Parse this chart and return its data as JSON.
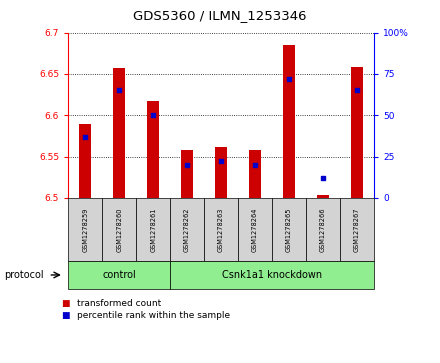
{
  "title": "GDS5360 / ILMN_1253346",
  "samples": [
    "GSM1278259",
    "GSM1278260",
    "GSM1278261",
    "GSM1278262",
    "GSM1278263",
    "GSM1278264",
    "GSM1278265",
    "GSM1278266",
    "GSM1278267"
  ],
  "red_values": [
    6.59,
    6.657,
    6.617,
    6.558,
    6.562,
    6.558,
    6.685,
    6.503,
    6.658
  ],
  "blue_percentiles": [
    37,
    65,
    50,
    20,
    22,
    20,
    72,
    12,
    65
  ],
  "ylim_left": [
    6.5,
    6.7
  ],
  "ylim_right": [
    0,
    100
  ],
  "yticks_left": [
    6.5,
    6.55,
    6.6,
    6.65,
    6.7
  ],
  "ytick_labels_left": [
    "6.5",
    "6.55",
    "6.6",
    "6.65",
    "6.7"
  ],
  "yticks_right": [
    0,
    25,
    50,
    75,
    100
  ],
  "ytick_labels_right": [
    "0",
    "25",
    "50",
    "75",
    "100%"
  ],
  "bar_bottom": 6.5,
  "bar_color": "#cc0000",
  "dot_color": "#0000cc",
  "control_label": "control",
  "knockdown_label": "Csnk1a1 knockdown",
  "protocol_label": "protocol",
  "legend_red": "transformed count",
  "legend_blue": "percentile rank within the sample",
  "group_box_color": "#90ee90",
  "sample_box_color": "#d3d3d3",
  "n_control": 3,
  "n_knockdown": 6,
  "bar_width": 0.35
}
